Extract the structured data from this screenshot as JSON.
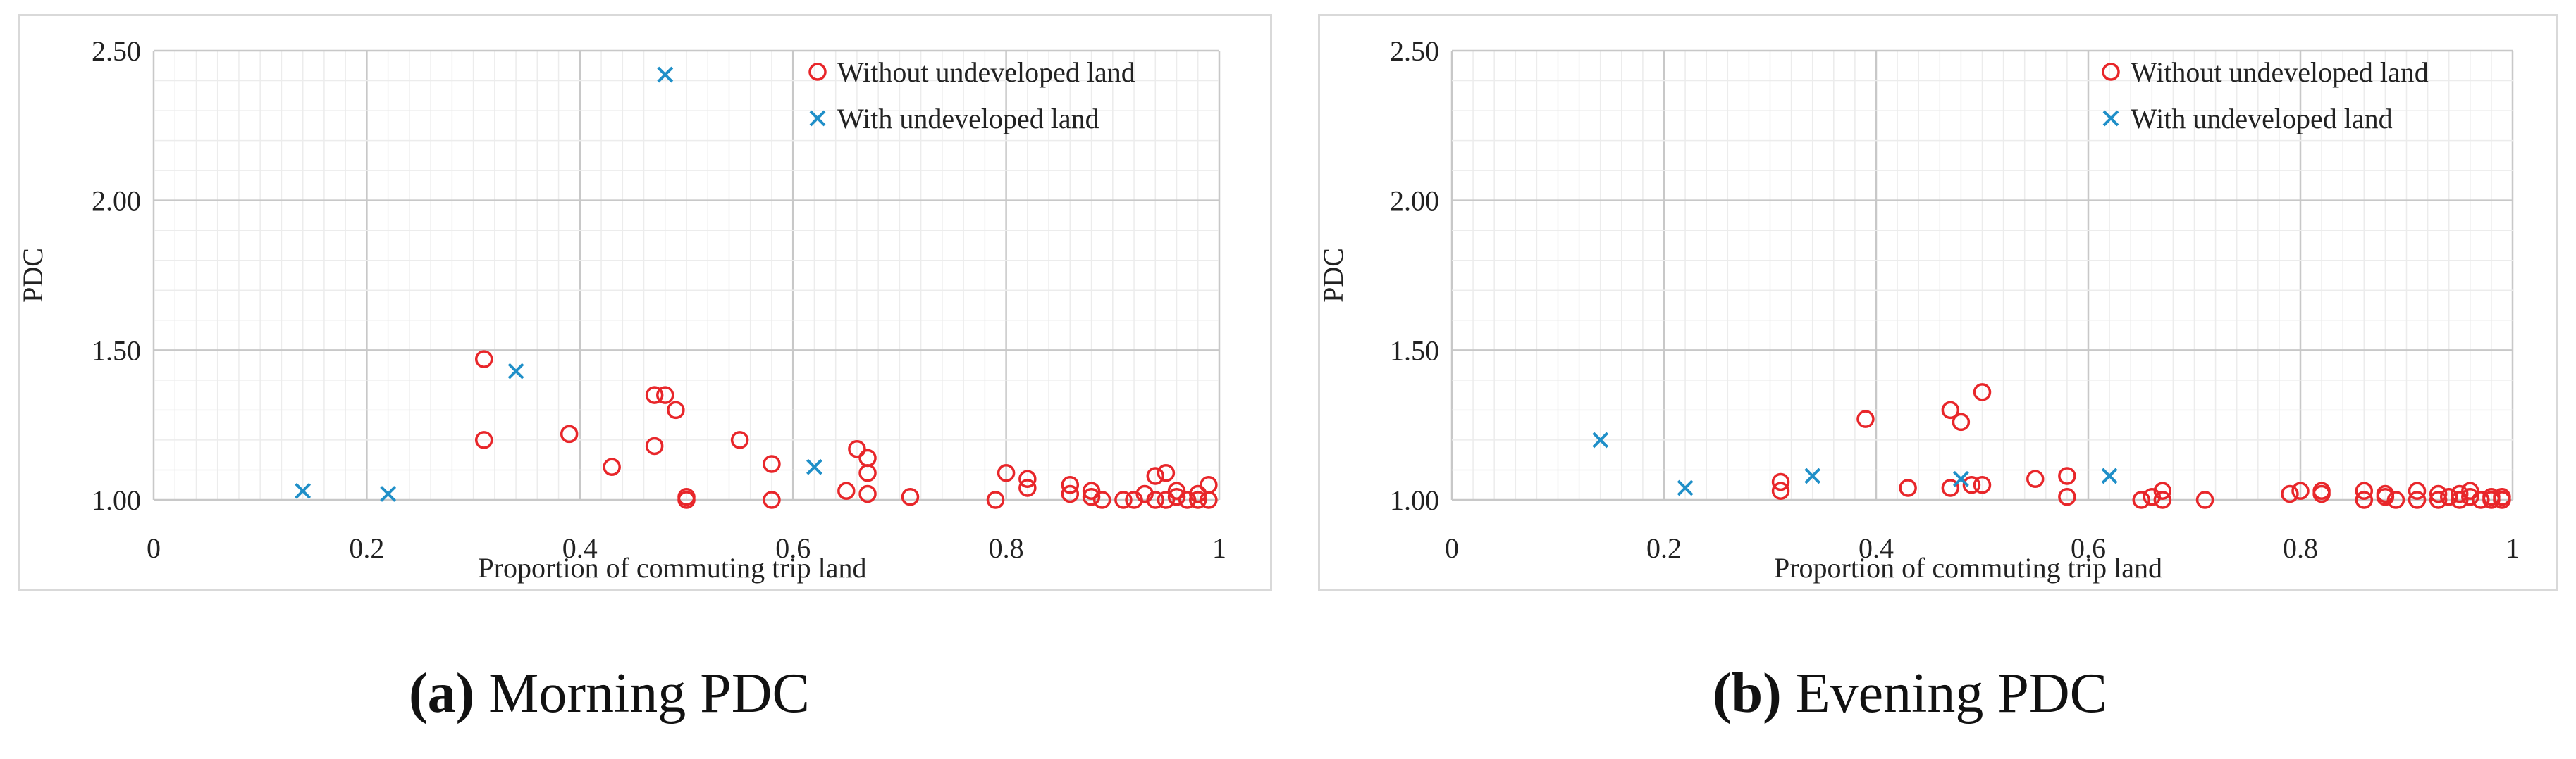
{
  "chart_data": [
    {
      "type": "scatter",
      "xlabel": "Proportion of commuting trip land",
      "ylabel": "PDC",
      "xlim": [
        0,
        1
      ],
      "ylim": [
        1.0,
        2.5
      ],
      "x_ticks": [
        "0",
        "0.2",
        "0.4",
        "0.6",
        "0.8",
        "1"
      ],
      "y_ticks": [
        "1.00",
        "1.50",
        "2.00",
        "2.50"
      ],
      "grid": true,
      "legend_position": "top-right",
      "series": [
        {
          "name": "Without undeveloped land",
          "marker": "circle",
          "color": "#e8262a",
          "points": [
            [
              0.31,
              1.47
            ],
            [
              0.31,
              1.2
            ],
            [
              0.39,
              1.22
            ],
            [
              0.43,
              1.11
            ],
            [
              0.47,
              1.35
            ],
            [
              0.48,
              1.35
            ],
            [
              0.49,
              1.3
            ],
            [
              0.47,
              1.18
            ],
            [
              0.5,
              1.01
            ],
            [
              0.5,
              1.0
            ],
            [
              0.55,
              1.2
            ],
            [
              0.58,
              1.12
            ],
            [
              0.58,
              1.0
            ],
            [
              0.65,
              1.03
            ],
            [
              0.66,
              1.17
            ],
            [
              0.67,
              1.14
            ],
            [
              0.67,
              1.09
            ],
            [
              0.67,
              1.02
            ],
            [
              0.71,
              1.01
            ],
            [
              0.79,
              1.0
            ],
            [
              0.8,
              1.09
            ],
            [
              0.82,
              1.07
            ],
            [
              0.82,
              1.04
            ],
            [
              0.86,
              1.05
            ],
            [
              0.86,
              1.02
            ],
            [
              0.88,
              1.03
            ],
            [
              0.88,
              1.01
            ],
            [
              0.89,
              1.0
            ],
            [
              0.91,
              1.0
            ],
            [
              0.92,
              1.0
            ],
            [
              0.93,
              1.02
            ],
            [
              0.94,
              1.08
            ],
            [
              0.95,
              1.09
            ],
            [
              0.94,
              1.0
            ],
            [
              0.95,
              1.0
            ],
            [
              0.96,
              1.03
            ],
            [
              0.96,
              1.01
            ],
            [
              0.97,
              1.0
            ],
            [
              0.98,
              1.02
            ],
            [
              0.98,
              1.0
            ],
            [
              0.99,
              1.05
            ],
            [
              0.99,
              1.0
            ]
          ]
        },
        {
          "name": "With undeveloped land",
          "marker": "x",
          "color": "#1f8fc8",
          "points": [
            [
              0.14,
              1.03
            ],
            [
              0.22,
              1.02
            ],
            [
              0.34,
              1.43
            ],
            [
              0.48,
              2.42
            ],
            [
              0.62,
              1.11
            ]
          ]
        }
      ]
    },
    {
      "type": "scatter",
      "xlabel": "Proportion of commuting trip land",
      "ylabel": "PDC",
      "xlim": [
        0,
        1
      ],
      "ylim": [
        1.0,
        2.5
      ],
      "x_ticks": [
        "0",
        "0.2",
        "0.4",
        "0.6",
        "0.8",
        "1"
      ],
      "y_ticks": [
        "1.00",
        "1.50",
        "2.00",
        "2.50"
      ],
      "grid": true,
      "legend_position": "top-right",
      "series": [
        {
          "name": "Without undeveloped land",
          "marker": "circle",
          "color": "#e8262a",
          "points": [
            [
              0.31,
              1.06
            ],
            [
              0.31,
              1.03
            ],
            [
              0.39,
              1.27
            ],
            [
              0.43,
              1.04
            ],
            [
              0.47,
              1.3
            ],
            [
              0.48,
              1.26
            ],
            [
              0.47,
              1.04
            ],
            [
              0.49,
              1.05
            ],
            [
              0.5,
              1.05
            ],
            [
              0.5,
              1.36
            ],
            [
              0.55,
              1.07
            ],
            [
              0.58,
              1.08
            ],
            [
              0.58,
              1.01
            ],
            [
              0.65,
              1.0
            ],
            [
              0.66,
              1.01
            ],
            [
              0.67,
              1.03
            ],
            [
              0.67,
              1.0
            ],
            [
              0.71,
              1.0
            ],
            [
              0.79,
              1.02
            ],
            [
              0.8,
              1.03
            ],
            [
              0.82,
              1.03
            ],
            [
              0.82,
              1.02
            ],
            [
              0.86,
              1.03
            ],
            [
              0.86,
              1.0
            ],
            [
              0.88,
              1.02
            ],
            [
              0.88,
              1.01
            ],
            [
              0.89,
              1.0
            ],
            [
              0.91,
              1.03
            ],
            [
              0.91,
              1.0
            ],
            [
              0.93,
              1.02
            ],
            [
              0.93,
              1.0
            ],
            [
              0.94,
              1.01
            ],
            [
              0.95,
              1.02
            ],
            [
              0.95,
              1.0
            ],
            [
              0.96,
              1.03
            ],
            [
              0.96,
              1.01
            ],
            [
              0.97,
              1.0
            ],
            [
              0.98,
              1.01
            ],
            [
              0.98,
              1.0
            ],
            [
              0.99,
              1.01
            ],
            [
              0.99,
              1.0
            ]
          ]
        },
        {
          "name": "With undeveloped land",
          "marker": "x",
          "color": "#1f8fc8",
          "points": [
            [
              0.14,
              1.2
            ],
            [
              0.22,
              1.04
            ],
            [
              0.34,
              1.08
            ],
            [
              0.48,
              1.07
            ],
            [
              0.62,
              1.08
            ]
          ]
        }
      ]
    }
  ],
  "captions": [
    {
      "letter": "(a)",
      "text": "Morning PDC"
    },
    {
      "letter": "(b)",
      "text": "Evening PDC"
    }
  ]
}
